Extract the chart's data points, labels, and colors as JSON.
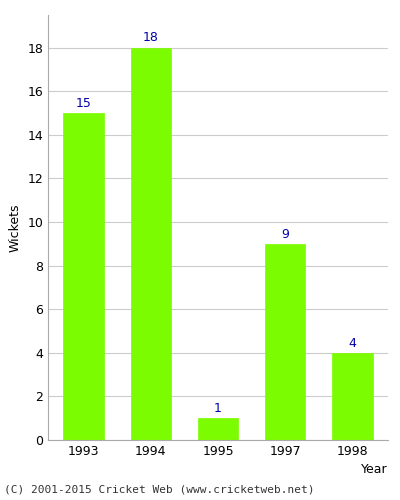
{
  "years": [
    "1993",
    "1994",
    "1995",
    "1997",
    "1998"
  ],
  "values": [
    15,
    18,
    1,
    9,
    4
  ],
  "bar_color": "#7CFC00",
  "bar_edge_color": "#7CFC00",
  "annotation_color": "#0000AA",
  "xlabel": "Year",
  "ylabel": "Wickets",
  "ylim": [
    0,
    19.5
  ],
  "yticks": [
    0,
    2,
    4,
    6,
    8,
    10,
    12,
    14,
    16,
    18
  ],
  "annotation_fontsize": 9,
  "axis_label_fontsize": 9,
  "tick_fontsize": 9,
  "footer_text": "(C) 2001-2015 Cricket Web (www.cricketweb.net)",
  "footer_fontsize": 8,
  "background_color": "#ffffff",
  "bar_width": 0.6
}
